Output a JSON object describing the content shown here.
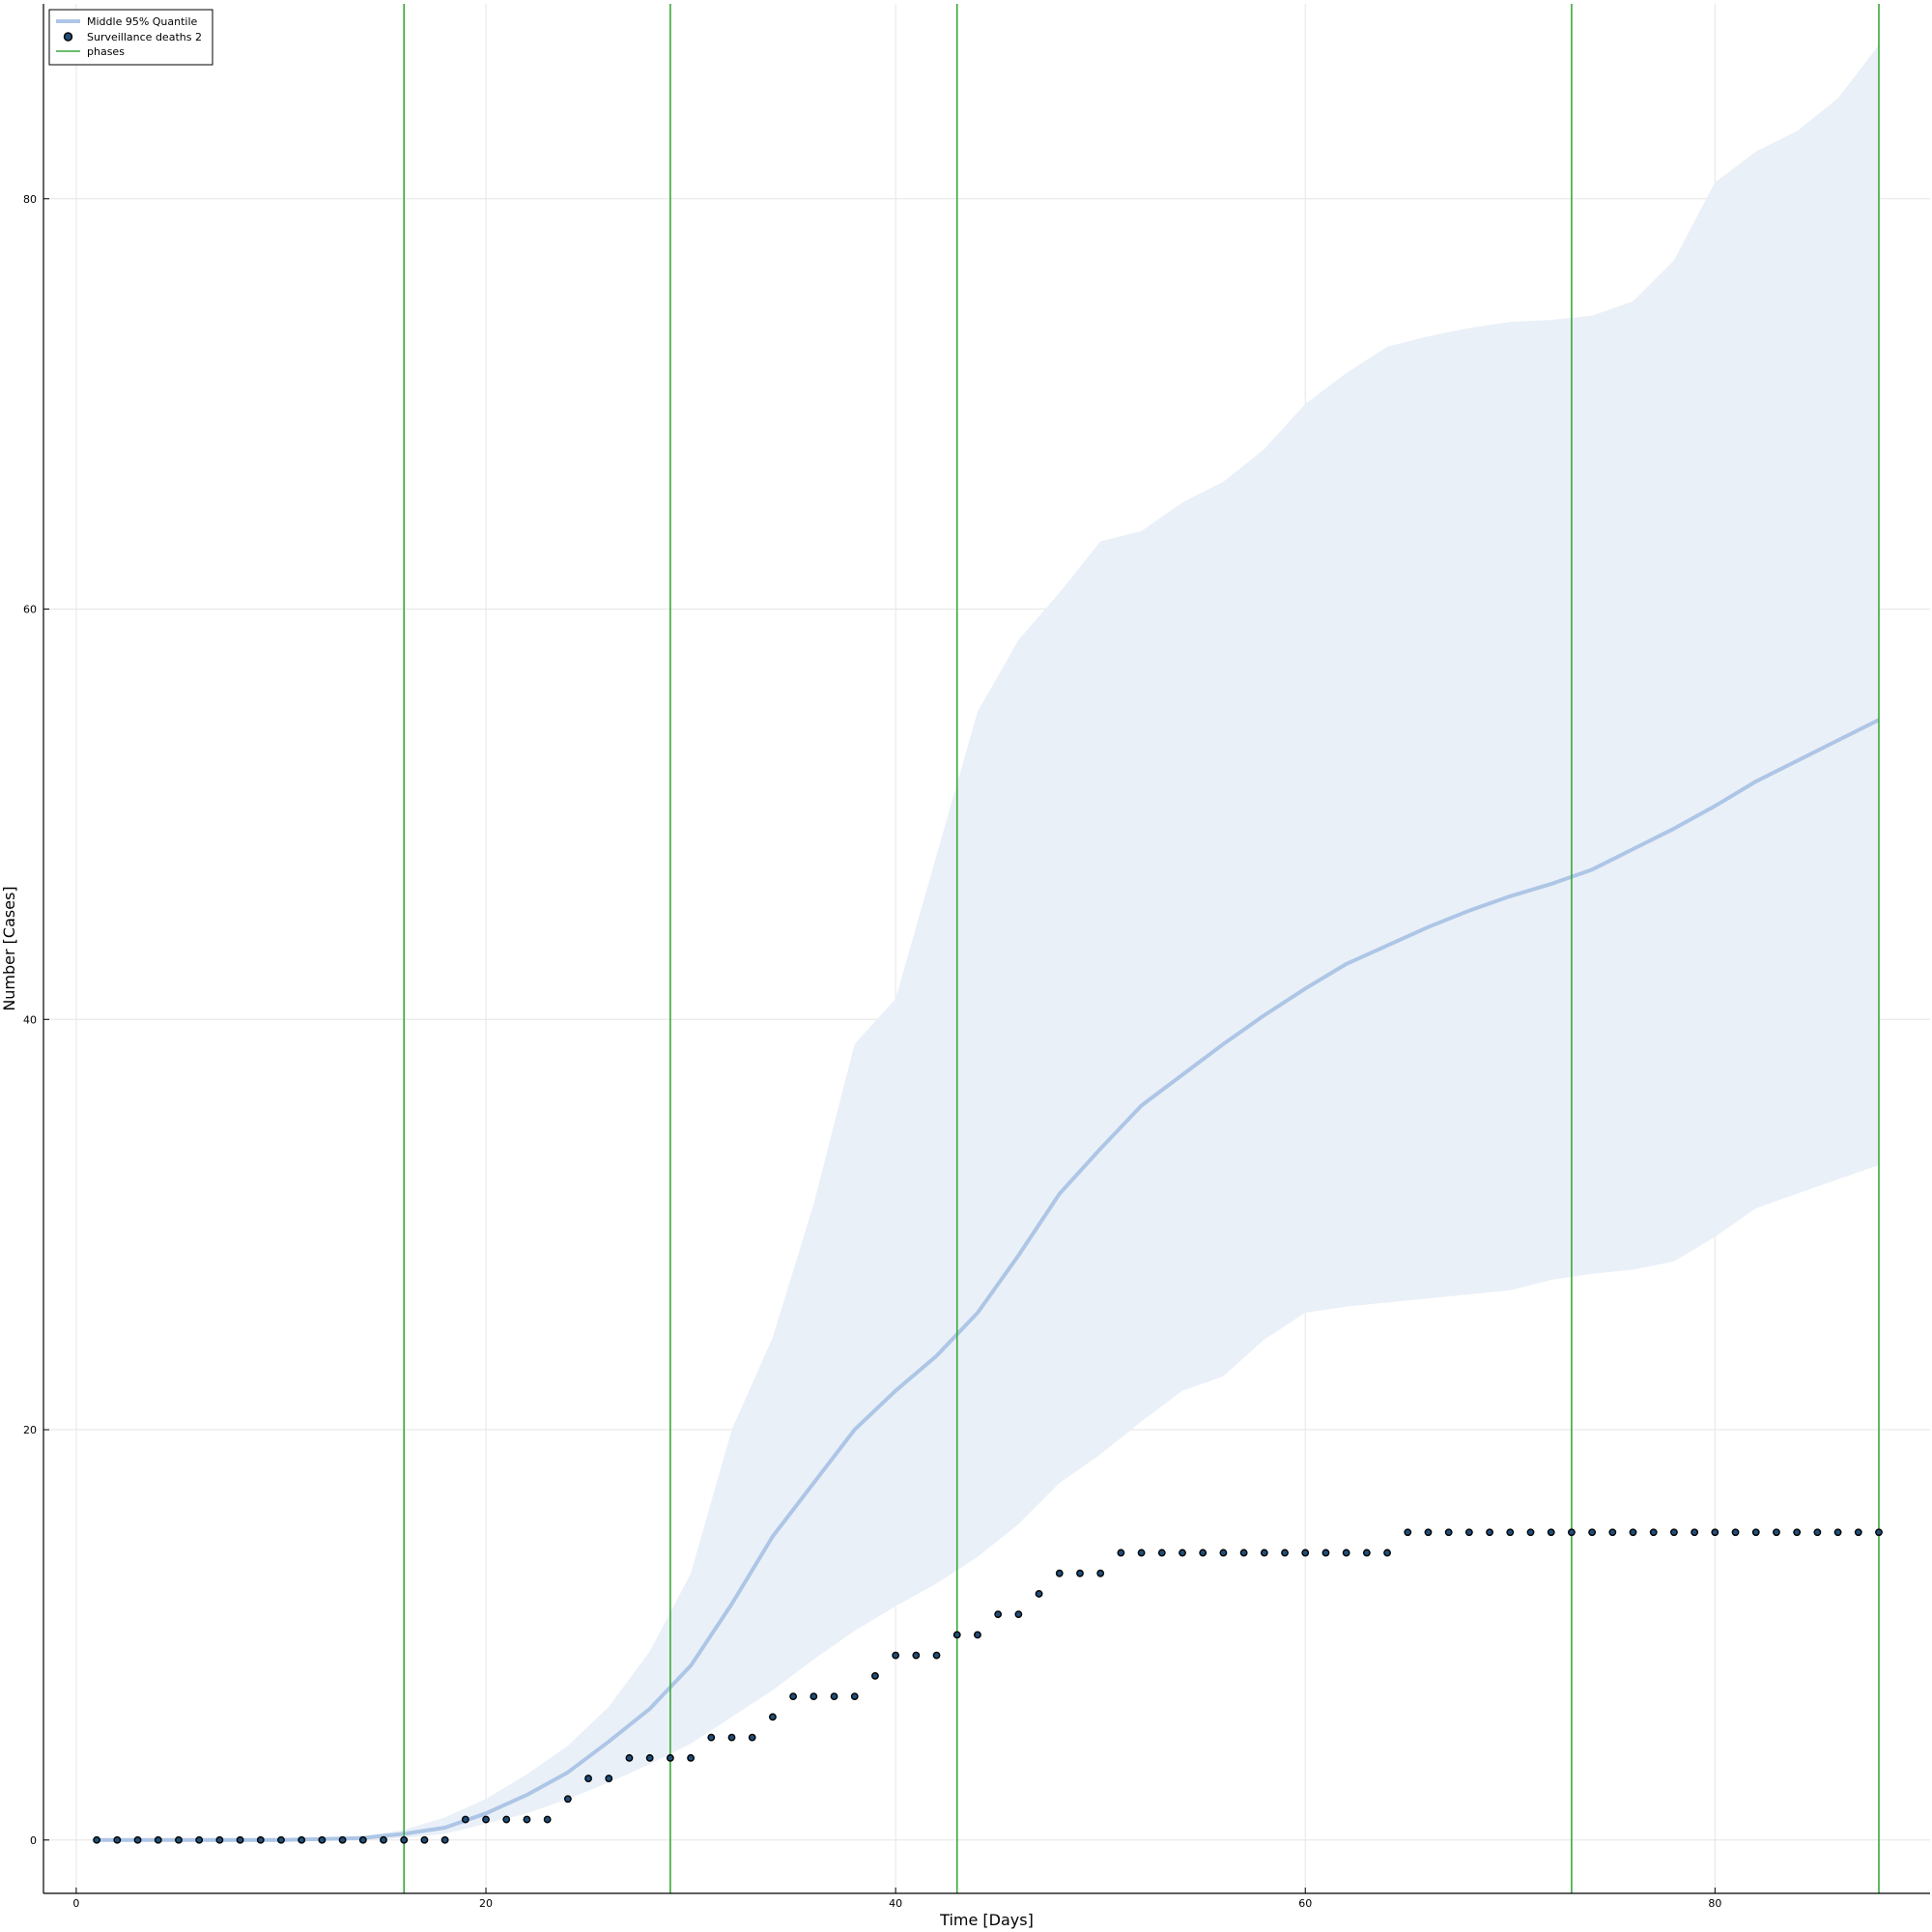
{
  "chart_data": {
    "type": "line",
    "title": "",
    "xlabel": "Time [Days]",
    "ylabel": "Number [Cases]",
    "xlim": [
      -1.6,
      90.5
    ],
    "ylim": [
      -2.6,
      89.5
    ],
    "xticks": [
      0,
      20,
      40,
      60,
      80
    ],
    "yticks": [
      0,
      20,
      40,
      60,
      80
    ],
    "grid": true,
    "legend_position": "top-left",
    "colors": {
      "band": "#adc6e6",
      "band_fill": "#eaf0f8",
      "points": "#1f4e79",
      "phases": "#3aa83a"
    },
    "series": [
      {
        "name": "Middle 95% Quantile",
        "kind": "band",
        "x": [
          1,
          5,
          10,
          14,
          16,
          18,
          20,
          22,
          24,
          26,
          28,
          30,
          32,
          34,
          36,
          38,
          40,
          42,
          44,
          46,
          48,
          50,
          52,
          54,
          56,
          58,
          60,
          62,
          64,
          66,
          68,
          70,
          72,
          74,
          76,
          78,
          80,
          82,
          84,
          86,
          88
        ],
        "median": [
          0,
          0,
          0,
          0.1,
          0.3,
          0.6,
          1.3,
          2.2,
          3.3,
          4.8,
          6.4,
          8.5,
          11.5,
          14.8,
          17.4,
          20.0,
          21.9,
          23.6,
          25.7,
          28.5,
          31.5,
          33.7,
          35.8,
          37.3,
          38.8,
          40.2,
          41.5,
          42.7,
          43.6,
          44.5,
          45.3,
          46.0,
          46.6,
          47.3,
          48.3,
          49.3,
          50.4,
          51.6,
          52.6,
          53.6,
          54.6
        ],
        "lower": [
          0,
          0,
          0,
          0,
          0.1,
          0.3,
          0.8,
          1.3,
          2.0,
          2.8,
          3.7,
          4.7,
          6.0,
          7.3,
          8.8,
          10.2,
          11.4,
          12.5,
          13.8,
          15.4,
          17.4,
          18.8,
          20.4,
          21.9,
          22.6,
          24.4,
          25.7,
          26.0,
          26.2,
          26.4,
          26.6,
          26.8,
          27.3,
          27.6,
          27.8,
          28.2,
          29.4,
          30.8,
          31.5,
          32.2,
          32.9
        ],
        "upper": [
          0,
          0,
          0,
          0.2,
          0.5,
          1.1,
          2.0,
          3.2,
          4.6,
          6.5,
          9.2,
          13.0,
          20.0,
          24.5,
          31.0,
          38.8,
          41.0,
          48.0,
          55.0,
          58.5,
          60.8,
          63.3,
          63.8,
          65.2,
          66.2,
          67.8,
          70.0,
          71.5,
          72.8,
          73.3,
          73.7,
          74.0,
          74.1,
          74.3,
          75.0,
          77.0,
          80.8,
          82.3,
          83.3,
          84.9,
          87.5
        ]
      },
      {
        "name": "Surveillance deaths 2",
        "kind": "points",
        "x": [
          1,
          2,
          3,
          4,
          5,
          6,
          7,
          8,
          9,
          10,
          11,
          12,
          13,
          14,
          15,
          16,
          17,
          18,
          19,
          20,
          21,
          22,
          23,
          24,
          25,
          26,
          27,
          28,
          29,
          30,
          31,
          32,
          33,
          34,
          35,
          36,
          37,
          38,
          39,
          40,
          41,
          42,
          43,
          44,
          45,
          46,
          47,
          48,
          49,
          50,
          51,
          52,
          53,
          54,
          55,
          56,
          57,
          58,
          59,
          60,
          61,
          62,
          63,
          64,
          65,
          66,
          67,
          68,
          69,
          70,
          71,
          72,
          73,
          74,
          75,
          76,
          77,
          78,
          79,
          80,
          81,
          82,
          83,
          84,
          85,
          86,
          87,
          88
        ],
        "y": [
          0,
          0,
          0,
          0,
          0,
          0,
          0,
          0,
          0,
          0,
          0,
          0,
          0,
          0,
          0,
          0,
          0,
          0,
          1,
          1,
          1,
          1,
          1,
          2,
          3,
          3,
          4,
          4,
          4,
          4,
          5,
          5,
          5,
          6,
          7,
          7,
          7,
          7,
          8,
          9,
          9,
          9,
          10,
          10,
          11,
          11,
          12,
          13,
          13,
          13,
          14,
          14,
          14,
          14,
          14,
          14,
          14,
          14,
          14,
          14,
          14,
          14,
          14,
          14,
          15,
          15,
          15,
          15,
          15,
          15,
          15,
          15,
          15,
          15,
          15,
          15,
          15,
          15,
          15,
          15,
          15,
          15,
          15,
          15,
          15,
          15,
          15,
          15
        ]
      },
      {
        "name": "phases",
        "kind": "vlines",
        "x": [
          16,
          29,
          43,
          73,
          88
        ]
      }
    ]
  }
}
